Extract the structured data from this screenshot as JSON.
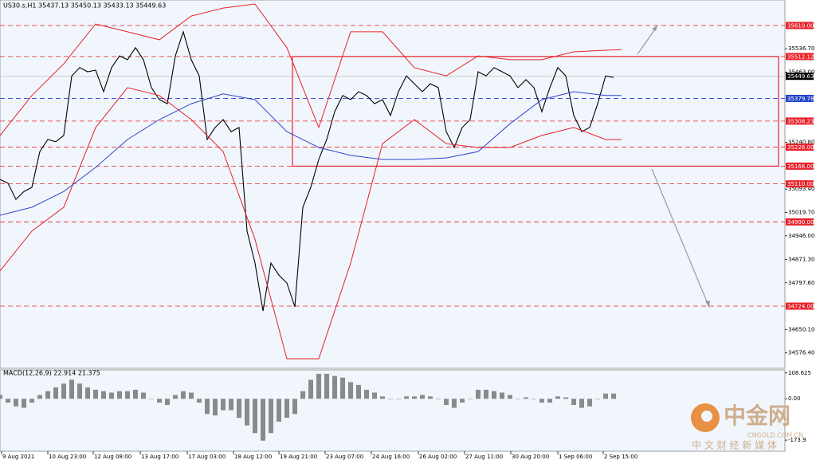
{
  "header": "US30.s,H1  35437.13 35450.13 35433.13 35449.63",
  "chart_data": [
    {
      "type": "line",
      "xlim": [
        0,
        98.5
      ],
      "ylim": [
        34527.7,
        35690.5
      ],
      "xticks": [
        {
          "value": 0.2,
          "label": "9 Aug 2021"
        },
        {
          "value": 6.0,
          "label": "10 Aug 23:00"
        },
        {
          "value": 11.7,
          "label": "12 Aug 08:00"
        },
        {
          "value": 17.6,
          "label": "13 Aug 17:00"
        },
        {
          "value": 23.5,
          "label": "17 Aug 03:00"
        },
        {
          "value": 29.3,
          "label": "18 Aug 12:00"
        },
        {
          "value": 35.0,
          "label": "19 Aug 21:00"
        },
        {
          "value": 40.8,
          "label": "23 Aug 07:00"
        },
        {
          "value": 46.6,
          "label": "24 Aug 16:00"
        },
        {
          "value": 52.5,
          "label": "26 Aug 02:00"
        },
        {
          "value": 58.3,
          "label": "27 Aug 11:00"
        },
        {
          "value": 64.1,
          "label": "30 Aug 20:00"
        },
        {
          "value": 70.0,
          "label": "1 Sep 06:00"
        },
        {
          "value": 75.7,
          "label": "2 Sep 15:00"
        }
      ],
      "yticks": [
        {
          "value": 35536.7,
          "label": "35536.70"
        },
        {
          "value": 35463.0,
          "label": "35463.00"
        },
        {
          "value": 35240.8,
          "label": "35240.80"
        },
        {
          "value": 35093.4,
          "label": "35093.40"
        },
        {
          "value": 35019.7,
          "label": "35019.70"
        },
        {
          "value": 34946.0,
          "label": "34946.00"
        },
        {
          "value": 34871.3,
          "label": "34871.30"
        },
        {
          "value": 34797.6,
          "label": "34797.60"
        },
        {
          "value": 34650.1,
          "label": "34650.10"
        },
        {
          "value": 34576.4,
          "label": "34576.40"
        }
      ],
      "levels": [
        {
          "value": 35610.0,
          "label": "35610.00",
          "color": "#e8202a"
        },
        {
          "value": 35512.12,
          "label": "35512.12",
          "color": "#e8202a"
        },
        {
          "value": 35449.63,
          "label": "35449.63",
          "color": "#000000"
        },
        {
          "value": 35379.78,
          "label": "35379.78",
          "color": "#2244cc"
        },
        {
          "value": 35308.23,
          "label": "35308.23",
          "color": "#e8202a"
        },
        {
          "value": 35226.0,
          "label": "35226.00",
          "color": "#e8202a"
        },
        {
          "value": 35166.0,
          "label": "35166.00",
          "color": "#e8202a"
        },
        {
          "value": 35110.0,
          "label": "35110.00",
          "color": "#e8202a"
        },
        {
          "value": 34990.0,
          "label": "34990.00",
          "color": "#e8202a"
        },
        {
          "value": 34724.0,
          "label": "34724.00",
          "color": "#e8202a"
        }
      ],
      "series": [
        {
          "color": "#000000",
          "x": [
            0,
            1,
            2,
            3,
            4,
            5,
            6,
            7,
            8,
            9,
            10,
            11,
            12,
            13,
            14,
            15,
            16,
            17,
            18,
            19,
            20,
            21,
            22,
            23,
            24,
            25,
            26,
            27,
            28,
            29,
            30,
            31,
            32,
            33,
            34,
            35,
            36,
            37,
            38,
            39,
            40,
            41,
            42,
            43,
            44,
            45,
            46,
            47,
            48,
            49,
            50,
            51,
            52,
            53,
            54,
            55,
            56,
            57,
            58,
            59,
            60,
            61,
            62,
            63,
            64,
            65,
            66,
            67,
            68,
            69,
            70,
            71,
            72,
            73,
            74,
            75,
            76,
            77
          ],
          "values": [
            35124,
            35112,
            35061,
            35086,
            35099,
            35212,
            35250,
            35243,
            35263,
            35451,
            35477,
            35464,
            35469,
            35401,
            35477,
            35514,
            35502,
            35540,
            35502,
            35414,
            35376,
            35363,
            35514,
            35590,
            35502,
            35451,
            35250,
            35288,
            35313,
            35275,
            35288,
            34961,
            34860,
            34709,
            34860,
            34822,
            34797,
            34722,
            35036,
            35099,
            35187,
            35250,
            35338,
            35389,
            35376,
            35401,
            35389,
            35363,
            35376,
            35326,
            35401,
            35451,
            35426,
            35401,
            35426,
            35414,
            35275,
            35225,
            35288,
            35313,
            35464,
            35451,
            35477,
            35464,
            35451,
            35414,
            35439,
            35414,
            35338,
            35414,
            35477,
            35451,
            35326,
            35275,
            35288,
            35363,
            35451,
            35446
          ]
        },
        {
          "color": "#e8202a",
          "x": [
            0,
            4,
            8,
            12,
            16,
            20,
            24,
            28,
            32,
            36,
            40,
            44,
            48,
            52,
            56,
            60,
            64,
            68,
            72,
            76,
            78
          ],
          "values": [
            35263,
            35389,
            35489,
            35615,
            35590,
            35565,
            35640,
            35665,
            35678,
            35540,
            35288,
            35590,
            35590,
            35477,
            35451,
            35514,
            35502,
            35502,
            35527,
            35532,
            35534
          ]
        },
        {
          "color": "#e8202a",
          "x": [
            0,
            4,
            8,
            12,
            16,
            20,
            24,
            28,
            32,
            36,
            40,
            44,
            48,
            52,
            56,
            60,
            64,
            68,
            72,
            76,
            78
          ],
          "values": [
            34835,
            34961,
            35036,
            35288,
            35414,
            35389,
            35313,
            35212,
            34935,
            34558,
            34558,
            34860,
            35237,
            35313,
            35237,
            35225,
            35225,
            35263,
            35288,
            35250,
            35250
          ]
        },
        {
          "color": "#3344cc",
          "x": [
            0,
            4,
            8,
            12,
            16,
            20,
            24,
            28,
            32,
            36,
            40,
            44,
            48,
            52,
            56,
            60,
            64,
            68,
            72,
            76,
            78
          ],
          "values": [
            35011,
            35036,
            35086,
            35162,
            35250,
            35313,
            35363,
            35394,
            35376,
            35275,
            35225,
            35200,
            35187,
            35187,
            35192,
            35212,
            35300,
            35376,
            35401,
            35389,
            35389
          ]
        }
      ]
    },
    {
      "type": "bar",
      "title": "MACD(12,26,9) 22.914 21.375",
      "xlim": [
        0,
        98.5
      ],
      "ylim": [
        -220.5,
        121.4
      ],
      "yticks": [
        108.625,
        {
          "value": 0,
          "label": "0.00"
        },
        -173.9
      ],
      "color": "#8a8a8a",
      "x": [
        0,
        1,
        2,
        3,
        4,
        5,
        6,
        7,
        8,
        9,
        10,
        11,
        12,
        13,
        14,
        15,
        16,
        17,
        18,
        19,
        20,
        21,
        22,
        23,
        24,
        25,
        26,
        27,
        28,
        29,
        30,
        31,
        32,
        33,
        34,
        35,
        36,
        37,
        38,
        39,
        40,
        41,
        42,
        43,
        44,
        45,
        46,
        47,
        48,
        49,
        50,
        51,
        52,
        53,
        54,
        55,
        56,
        57,
        58,
        59,
        60,
        61,
        62,
        63,
        64,
        65,
        66,
        67,
        68,
        69,
        70,
        71,
        72,
        73,
        74,
        75,
        76,
        77
      ],
      "values": [
        16,
        -16,
        -32,
        -38,
        -16,
        16,
        32,
        48,
        64,
        80,
        64,
        48,
        38,
        32,
        26,
        32,
        32,
        38,
        26,
        0,
        -16,
        -26,
        16,
        32,
        26,
        -16,
        -64,
        -70,
        -48,
        -48,
        -80,
        -112,
        -144,
        -176,
        -144,
        -96,
        -80,
        -64,
        32,
        80,
        105,
        105,
        96,
        89,
        70,
        58,
        38,
        26,
        10,
        0,
        0,
        10,
        10,
        16,
        10,
        0,
        -26,
        -38,
        -16,
        0,
        38,
        38,
        32,
        26,
        16,
        0,
        6,
        0,
        -16,
        -16,
        10,
        6,
        -26,
        -38,
        -32,
        0,
        22,
        22
      ]
    }
  ],
  "watermark": {
    "logo": "中金网",
    "site": "CNGOLD.COM.CN",
    "slogan": "中 文 财 经 新 媒 体"
  }
}
